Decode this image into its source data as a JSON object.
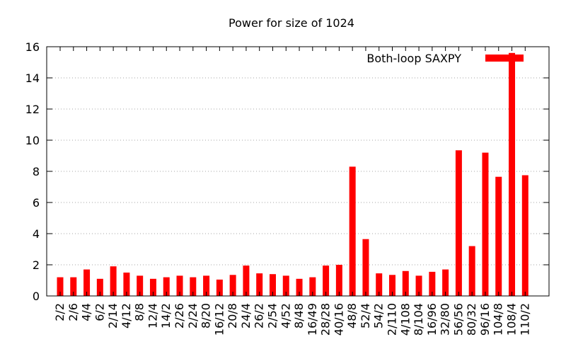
{
  "chart_data": {
    "type": "bar",
    "title": "Power for size of 1024",
    "xlabel": "",
    "ylabel": "",
    "ylim": [
      0,
      16
    ],
    "yticks": [
      0,
      2,
      4,
      6,
      8,
      10,
      12,
      14,
      16
    ],
    "grid": true,
    "legend_position": "top-right",
    "categories": [
      "2/2",
      "2/6",
      "4/4",
      "6/2",
      "2/14",
      "4/12",
      "8/8",
      "12/4",
      "14/2",
      "2/26",
      "2/24",
      "8/20",
      "16/12",
      "20/8",
      "24/4",
      "26/2",
      "2/54",
      "4/52",
      "8/48",
      "16/49",
      "28/28",
      "40/16",
      "48/8",
      "52/4",
      "54/2",
      "2/110",
      "4/108",
      "8/104",
      "16/96",
      "32/80",
      "56/56",
      "80/32",
      "96/16",
      "104/8",
      "108/4",
      "110/2"
    ],
    "series": [
      {
        "name": "Both-loop SAXPY",
        "color": "#ff0000",
        "values": [
          1.2,
          1.2,
          1.7,
          1.1,
          1.9,
          1.5,
          1.3,
          1.1,
          1.2,
          1.3,
          1.2,
          1.3,
          1.05,
          1.35,
          1.95,
          1.45,
          1.4,
          1.3,
          1.1,
          1.2,
          1.95,
          2.0,
          8.3,
          3.65,
          1.45,
          1.35,
          1.6,
          1.3,
          1.55,
          1.7,
          9.35,
          3.2,
          9.2,
          7.65,
          15.6,
          7.75
        ]
      }
    ]
  }
}
